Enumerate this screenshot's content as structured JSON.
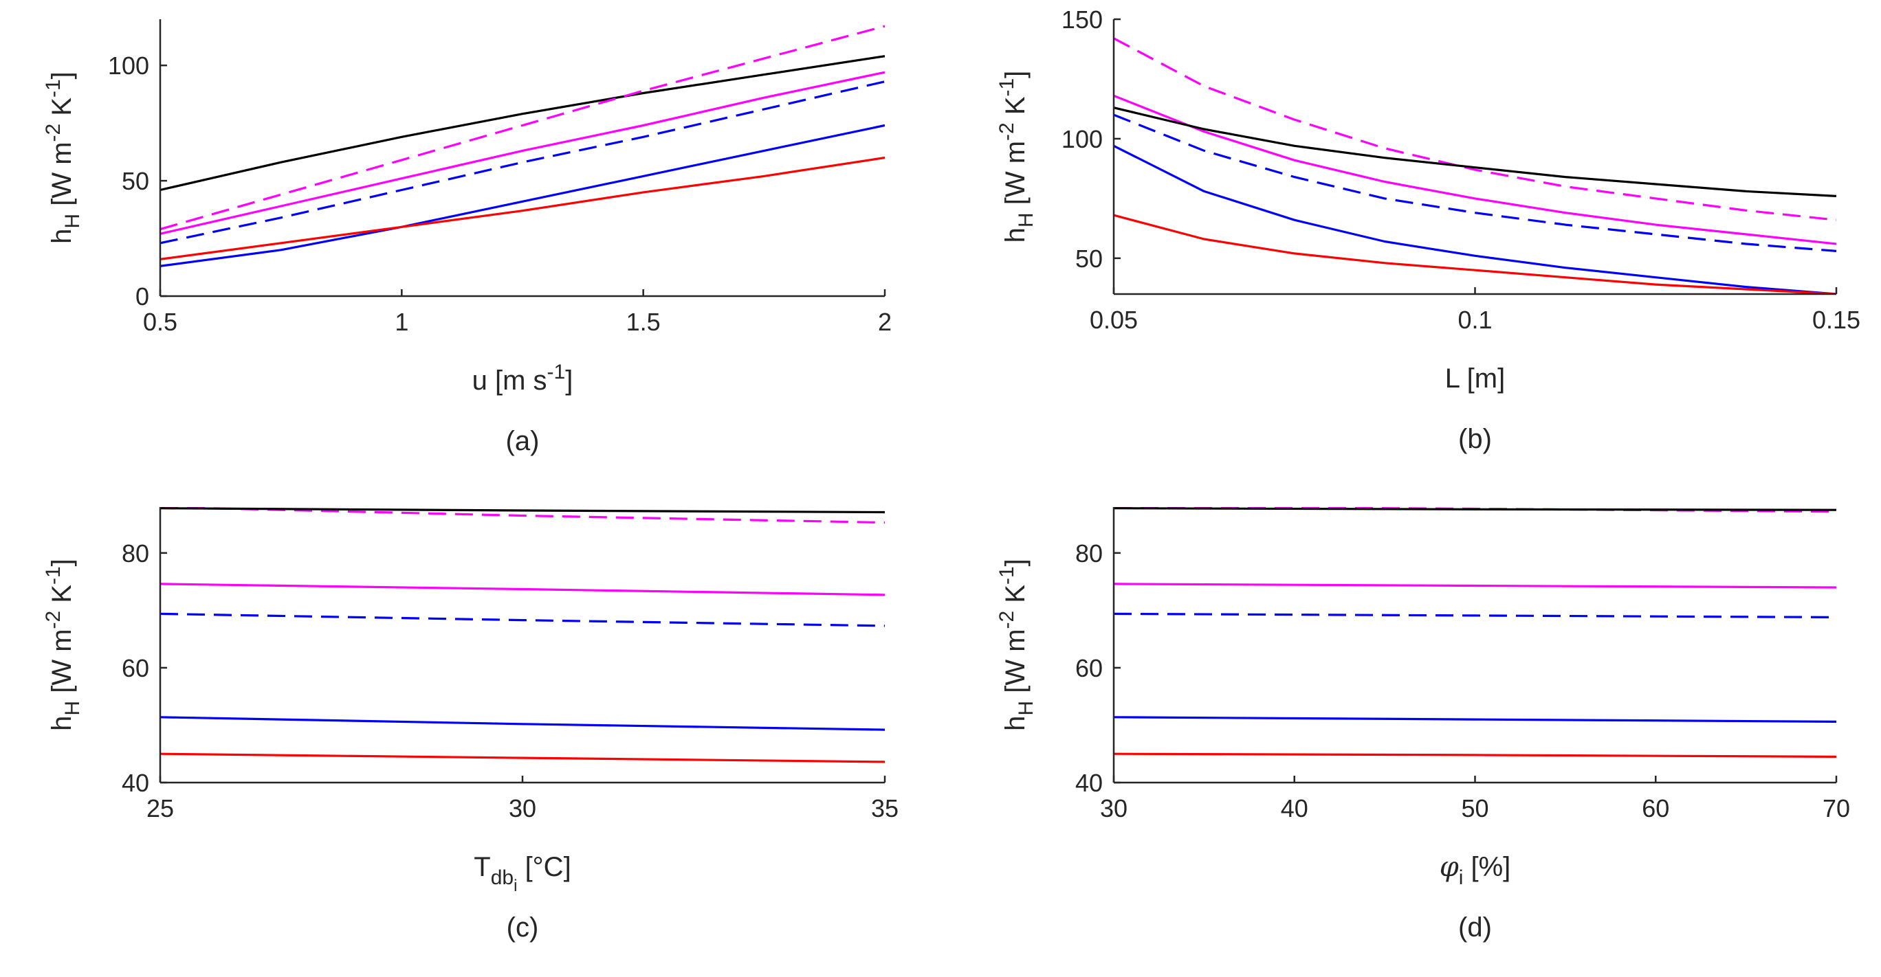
{
  "chart_data": [
    {
      "type": "line",
      "subtitle": "(a)",
      "xlabel_main": "u [m s",
      "xlabel_sup": "-1",
      "xlabel_end": "]",
      "ylabel": {
        "base": "h",
        "sub": "H",
        "unit_a": "[W m",
        "sup_a": "-2",
        "unit_b": " K",
        "sup_b": "-1",
        "unit_c": "]"
      },
      "xlim": [
        0.5,
        2
      ],
      "ylim": [
        0,
        120
      ],
      "xticks": [
        0.5,
        1,
        1.5,
        2
      ],
      "xtick_labels": [
        "0.5",
        "1",
        "1.5",
        "2"
      ],
      "yticks": [
        0,
        50,
        100
      ],
      "ytick_labels": [
        "0",
        "50",
        "100"
      ],
      "x": [
        0.5,
        0.75,
        1.0,
        1.25,
        1.5,
        1.75,
        2.0
      ],
      "series": [
        {
          "name": "black solid",
          "color": "#000000",
          "dash": false,
          "values": [
            46,
            58,
            69,
            79,
            88,
            96,
            104
          ]
        },
        {
          "name": "magenta dashed",
          "color": "#ff00ff",
          "dash": true,
          "values": [
            29,
            44,
            59,
            74,
            89,
            103,
            117
          ]
        },
        {
          "name": "magenta solid",
          "color": "#ff00ff",
          "dash": false,
          "values": [
            27,
            39,
            51,
            63,
            74,
            86,
            97
          ]
        },
        {
          "name": "blue dashed",
          "color": "#0000ff",
          "dash": true,
          "values": [
            23,
            34,
            46,
            58,
            69,
            81,
            93
          ]
        },
        {
          "name": "blue solid",
          "color": "#0000ff",
          "dash": false,
          "values": [
            13,
            20,
            30,
            41,
            52,
            63,
            74
          ]
        },
        {
          "name": "red solid",
          "color": "#ff0000",
          "dash": false,
          "values": [
            16,
            23,
            30,
            37,
            45,
            52,
            60
          ]
        }
      ]
    },
    {
      "type": "line",
      "subtitle": "(b)",
      "xlabel_main": "L [m]",
      "xlabel_sup": "",
      "xlabel_end": "",
      "ylabel": {
        "base": "h",
        "sub": "H",
        "unit_a": "[W m",
        "sup_a": "-2",
        "unit_b": " K",
        "sup_b": "-1",
        "unit_c": "]"
      },
      "xlim": [
        0.05,
        0.15
      ],
      "ylim": [
        35,
        150
      ],
      "xticks": [
        0.05,
        0.1,
        0.15
      ],
      "xtick_labels": [
        "0.05",
        "0.1",
        "0.15"
      ],
      "yticks": [
        50,
        100,
        150
      ],
      "ytick_labels": [
        "50",
        "100",
        "150"
      ],
      "x": [
        0.05,
        0.0625,
        0.075,
        0.0875,
        0.1,
        0.1125,
        0.125,
        0.1375,
        0.15
      ],
      "series": [
        {
          "name": "magenta dashed",
          "color": "#ff00ff",
          "dash": true,
          "values": [
            142,
            122,
            108,
            96,
            87,
            80,
            75,
            70,
            66
          ]
        },
        {
          "name": "magenta solid",
          "color": "#ff00ff",
          "dash": false,
          "values": [
            118,
            103,
            91,
            82,
            75,
            69,
            64,
            60,
            56
          ]
        },
        {
          "name": "black solid",
          "color": "#000000",
          "dash": false,
          "values": [
            113,
            104,
            97,
            92,
            88,
            84,
            81,
            78,
            76
          ]
        },
        {
          "name": "blue dashed",
          "color": "#0000ff",
          "dash": true,
          "values": [
            110,
            95,
            84,
            75,
            69,
            64,
            60,
            56,
            53
          ]
        },
        {
          "name": "blue solid",
          "color": "#0000ff",
          "dash": false,
          "values": [
            97,
            78,
            66,
            57,
            51,
            46,
            42,
            38,
            35
          ]
        },
        {
          "name": "red solid",
          "color": "#ff0000",
          "dash": false,
          "values": [
            68,
            58,
            52,
            48,
            45,
            42,
            39,
            37,
            35
          ]
        }
      ]
    },
    {
      "type": "line",
      "subtitle": "(c)",
      "xlabel_main": "T",
      "xlabel_sub": "db",
      "xlabel_subsub": "i",
      "xlabel_end": " [°C]",
      "ylabel": {
        "base": "h",
        "sub": "H",
        "unit_a": "[W m",
        "sup_a": "-2",
        "unit_b": " K",
        "sup_b": "-1",
        "unit_c": "]"
      },
      "xlim": [
        25,
        35
      ],
      "ylim": [
        40,
        88
      ],
      "xticks": [
        25,
        30,
        35
      ],
      "xtick_labels": [
        "25",
        "30",
        "35"
      ],
      "yticks": [
        40,
        60,
        80
      ],
      "ytick_labels": [
        "40",
        "60",
        "80"
      ],
      "x": [
        25,
        30,
        35
      ],
      "series": [
        {
          "name": "magenta dashed",
          "color": "#ff00ff",
          "dash": true,
          "values": [
            88,
            86.5,
            85.3
          ]
        },
        {
          "name": "black solid",
          "color": "#000000",
          "dash": false,
          "values": [
            87.8,
            87.4,
            87.1
          ]
        },
        {
          "name": "magenta solid",
          "color": "#ff00ff",
          "dash": false,
          "values": [
            74.6,
            73.7,
            72.7
          ]
        },
        {
          "name": "blue dashed",
          "color": "#0000ff",
          "dash": true,
          "values": [
            69.4,
            68.3,
            67.3
          ]
        },
        {
          "name": "blue solid",
          "color": "#0000ff",
          "dash": false,
          "values": [
            51.4,
            50.2,
            49.2
          ]
        },
        {
          "name": "red solid",
          "color": "#ff0000",
          "dash": false,
          "values": [
            45,
            44.3,
            43.6
          ]
        }
      ]
    },
    {
      "type": "line",
      "subtitle": "(d)",
      "xlabel_main": "φ",
      "xlabel_sub": "i",
      "xlabel_subsub": "",
      "xlabel_end": " [%]",
      "ylabel": {
        "base": "h",
        "sub": "H",
        "unit_a": "[W m",
        "sup_a": "-2",
        "unit_b": " K",
        "sup_b": "-1",
        "unit_c": "]"
      },
      "xlim": [
        30,
        70
      ],
      "ylim": [
        40,
        88
      ],
      "xticks": [
        30,
        40,
        50,
        60,
        70
      ],
      "xtick_labels": [
        "30",
        "40",
        "50",
        "60",
        "70"
      ],
      "yticks": [
        40,
        60,
        80
      ],
      "ytick_labels": [
        "40",
        "60",
        "80"
      ],
      "x": [
        30,
        50,
        70
      ],
      "series": [
        {
          "name": "magenta dashed",
          "color": "#ff00ff",
          "dash": true,
          "values": [
            88.1,
            87.7,
            87.2
          ]
        },
        {
          "name": "black solid",
          "color": "#000000",
          "dash": false,
          "values": [
            87.8,
            87.6,
            87.5
          ]
        },
        {
          "name": "magenta solid",
          "color": "#ff00ff",
          "dash": false,
          "values": [
            74.6,
            74.3,
            74
          ]
        },
        {
          "name": "blue dashed",
          "color": "#0000ff",
          "dash": true,
          "values": [
            69.4,
            69.1,
            68.8
          ]
        },
        {
          "name": "blue solid",
          "color": "#0000ff",
          "dash": false,
          "values": [
            51.4,
            51.0,
            50.6
          ]
        },
        {
          "name": "red solid",
          "color": "#ff0000",
          "dash": false,
          "values": [
            45,
            44.8,
            44.5
          ]
        }
      ]
    }
  ]
}
